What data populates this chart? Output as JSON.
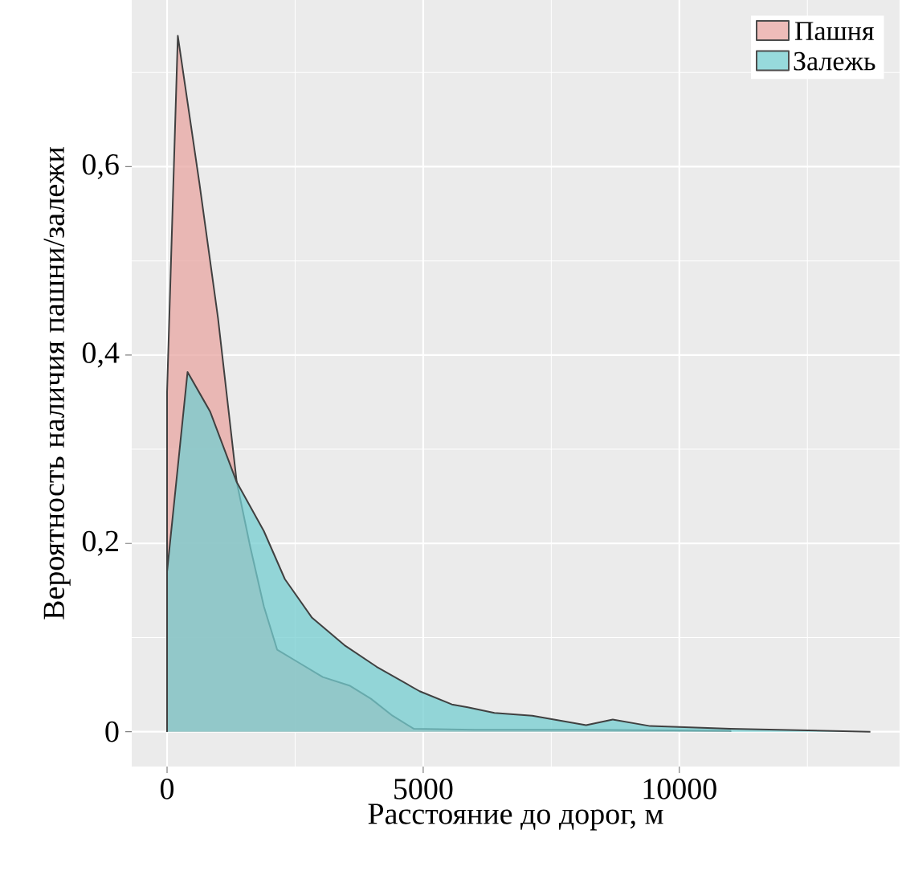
{
  "chart_data": {
    "type": "area",
    "xlabel": "Расстояние до дорог, м",
    "ylabel": "Вероятность наличия пашни/залежи",
    "xlim": [
      -690,
      14300
    ],
    "ylim": [
      -0.037,
      0.777
    ],
    "xticks": [
      0,
      5000,
      10000
    ],
    "yticks": [
      0,
      {
        "value": 0.2,
        "label": "0,2"
      },
      {
        "value": 0.4,
        "label": "0,4"
      },
      {
        "value": 0.6,
        "label": "0,6"
      }
    ],
    "grid": true,
    "legend": "top right",
    "series": [
      {
        "name": "Пашня",
        "color": "#e8a6a2",
        "x": [
          0,
          210,
          630,
          995,
          1360,
          1625,
          1890,
          2150,
          2520,
          3040,
          3560,
          3980,
          4400,
          4820,
          6000,
          8000,
          11000
        ],
        "values": [
          0.361,
          0.739,
          0.583,
          0.439,
          0.265,
          0.196,
          0.133,
          0.087,
          0.075,
          0.058,
          0.049,
          0.035,
          0.017,
          0.003,
          0.002,
          0.002,
          0.001
        ]
      },
      {
        "name": "Залежь",
        "color": "#74cdd0",
        "x": [
          0,
          400,
          840,
          1360,
          1890,
          2300,
          2830,
          3460,
          4090,
          4930,
          5560,
          5870,
          6390,
          7130,
          8180,
          8700,
          9430,
          11000,
          13730
        ],
        "values": [
          0.17,
          0.382,
          0.34,
          0.265,
          0.213,
          0.162,
          0.121,
          0.092,
          0.069,
          0.043,
          0.029,
          0.026,
          0.02,
          0.017,
          0.007,
          0.013,
          0.006,
          0.003,
          0.0
        ]
      }
    ]
  }
}
